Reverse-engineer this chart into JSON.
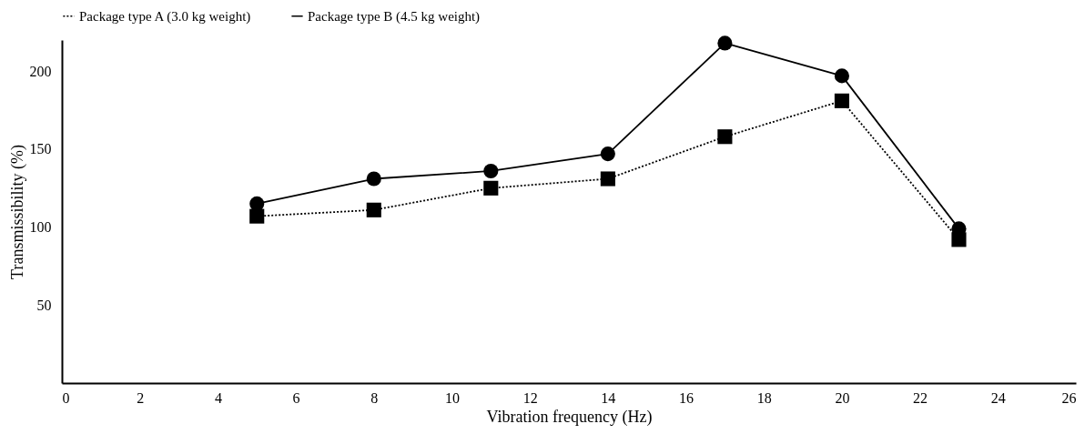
{
  "chart_data": {
    "type": "line",
    "xlabel": "Vibration frequency (Hz)",
    "ylabel": "Transmissibility (%)",
    "x": [
      5,
      8,
      11,
      14,
      17,
      20,
      23
    ],
    "series": [
      {
        "name": "Package type A (3.0 kg weight)",
        "color": "#000000",
        "marker": "square",
        "line_style": "dotted",
        "values": [
          107,
          111,
          125,
          131,
          158,
          181,
          92
        ]
      },
      {
        "name": "Package type B (4.5 kg weight)",
        "color": "#000000",
        "marker": "circle",
        "line_style": "solid",
        "values": [
          115,
          131,
          136,
          147,
          218,
          197,
          99
        ]
      }
    ],
    "xlim": [
      0,
      26
    ],
    "xticks": [
      0,
      2,
      4,
      6,
      8,
      10,
      12,
      14,
      16,
      18,
      20,
      22,
      24,
      26
    ],
    "ylim": [
      0,
      220
    ],
    "yticks": [
      50,
      100,
      150,
      200
    ],
    "grid": false,
    "legend": "top"
  }
}
